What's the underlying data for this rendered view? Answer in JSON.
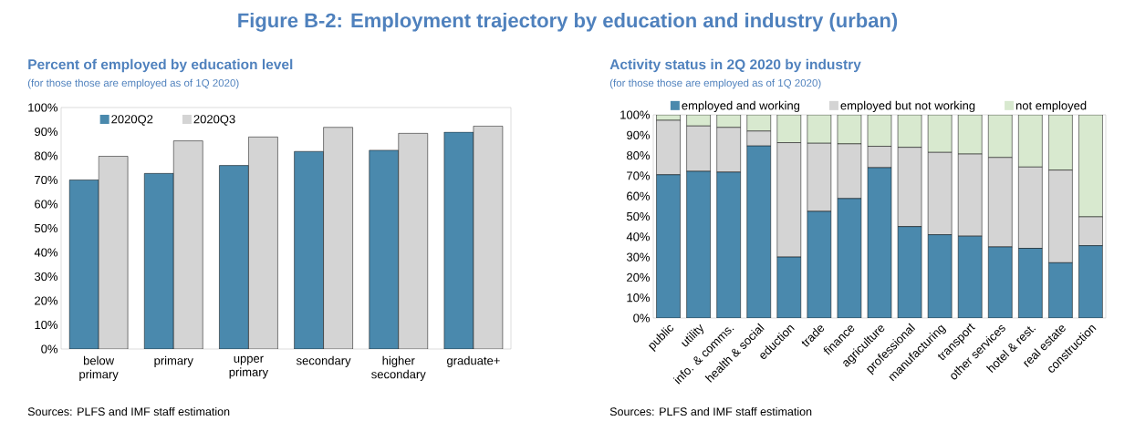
{
  "chart_data": [
    {
      "type": "bar",
      "title": "Percent of employed by education level",
      "subtitle": "(for those those are employed as of 1Q 2020)",
      "annotations": [
        "Figure B-2: Employment trajectory by education and industry (urban)",
        "Sources: PLFS and IMF staff estimation"
      ],
      "categories": [
        "below primary",
        "primary",
        "upper primary",
        "secondary",
        "higher secondary",
        "graduate+"
      ],
      "series": [
        {
          "name": "2020Q2",
          "color": "#4a89ad",
          "values": [
            70,
            72.7,
            76,
            81.8,
            82.3,
            89.8
          ]
        },
        {
          "name": "2020Q3",
          "color": "#d4d4d4",
          "values": [
            79.8,
            86.2,
            87.8,
            91.8,
            89.3,
            92.3
          ]
        }
      ],
      "ylim": [
        0,
        100
      ],
      "yticks": [
        {
          "value": 0,
          "label": "0%"
        },
        {
          "value": 10,
          "label": "10%"
        },
        {
          "value": 20,
          "label": "20%"
        },
        {
          "value": 30,
          "label": "30%"
        },
        {
          "value": 40,
          "label": "40%"
        },
        {
          "value": 50,
          "label": "50%"
        },
        {
          "value": 60,
          "label": "60%"
        },
        {
          "value": 70,
          "label": "70%"
        },
        {
          "value": 80,
          "label": "80%"
        },
        {
          "value": 90,
          "label": "90%"
        },
        {
          "value": 100,
          "label": "100%"
        }
      ],
      "legend": "top left"
    },
    {
      "type": "bar",
      "title": "Activity status in 2Q 2020 by industry",
      "subtitle": "(for those those are employed as of 1Q 2020)",
      "annotations": [
        "Sources: PLFS and IMF staff estimation"
      ],
      "categories": [
        "public",
        "utility",
        "info. & comms.",
        "health & social",
        "eduction",
        "trade",
        "finance",
        "agriculture",
        "professional",
        "manufacturing",
        "transport",
        "other services",
        "hotel & rest.",
        "real estate",
        "construction"
      ],
      "stacked": true,
      "series": [
        {
          "name": "employed and working",
          "color": "#4a89ad",
          "values": [
            70.5,
            72.2,
            71.8,
            84.7,
            30,
            52.5,
            58.8,
            74,
            45,
            41,
            40.3,
            35,
            34.3,
            27.2,
            35.6
          ]
        },
        {
          "name": "employed but not working",
          "color": "#d4d4d4",
          "values": [
            26.8,
            22.3,
            22,
            7.3,
            56.3,
            33.5,
            26.9,
            10.5,
            39,
            40.5,
            40.4,
            44,
            40,
            45.6,
            14.2
          ]
        },
        {
          "name": "not employed",
          "color": "#d8e9cf",
          "values": [
            2.7,
            5.5,
            6.2,
            8,
            13.7,
            14,
            14.3,
            15.5,
            16,
            18.5,
            19.3,
            21,
            25.7,
            27.2,
            50.2
          ]
        }
      ],
      "ylim": [
        0,
        100
      ],
      "yticks": [
        {
          "value": 0,
          "label": "0%"
        },
        {
          "value": 10,
          "label": "10%"
        },
        {
          "value": 20,
          "label": "20%"
        },
        {
          "value": 30,
          "label": "30%"
        },
        {
          "value": 40,
          "label": "40%"
        },
        {
          "value": 50,
          "label": "50%"
        },
        {
          "value": 60,
          "label": "60%"
        },
        {
          "value": 70,
          "label": "70%"
        },
        {
          "value": 80,
          "label": "80%"
        },
        {
          "value": 90,
          "label": "90%"
        },
        {
          "value": 100,
          "label": "100%"
        }
      ],
      "legend": "top"
    }
  ]
}
